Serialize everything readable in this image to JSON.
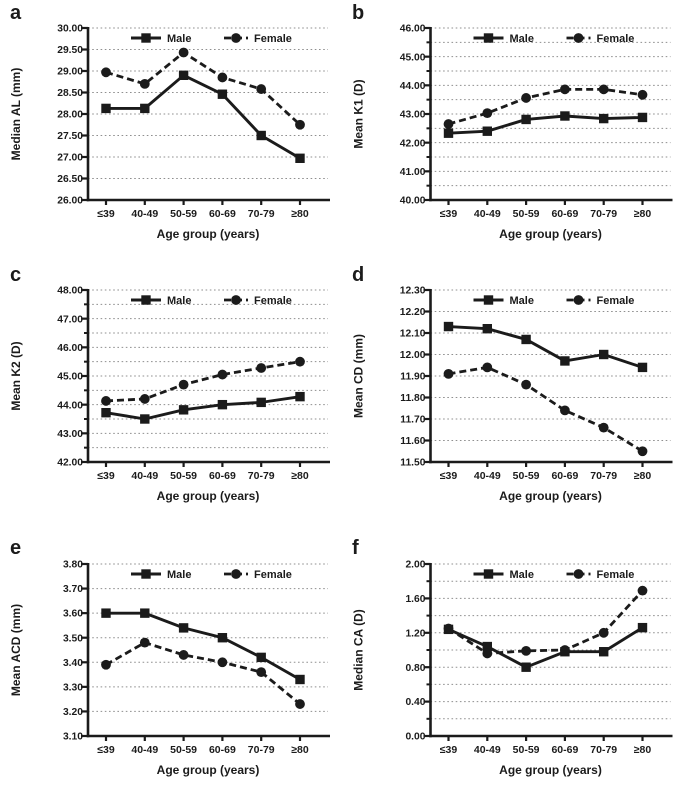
{
  "figure_title": "",
  "xlabel": "Age group (years)",
  "categories": [
    "≤39",
    "40-49",
    "50-59",
    "60-69",
    "70-79",
    "≥80"
  ],
  "legend": {
    "male_label": "Male",
    "female_label": "Female"
  },
  "colors": {
    "ink": "#1b1b1b",
    "grid": "#8f8f8f",
    "background": "#ffffff"
  },
  "chart_data": [
    {
      "panel_label": "a",
      "type": "line",
      "title": "",
      "ylabel": "Median AL (mm)",
      "ylim": [
        26.0,
        30.0
      ],
      "ytick_labels": [
        "30.00",
        "29.50",
        "29.00",
        "28.50",
        "28.00",
        "27.50",
        "27.00",
        "26.50",
        "26.00"
      ],
      "ygrid_step": 0.5,
      "grid": true,
      "legend_position": "top-inside",
      "series": [
        {
          "name": "Male",
          "marker": "square",
          "linestyle": "solid",
          "values": [
            28.13,
            28.13,
            28.9,
            28.46,
            27.5,
            26.97
          ]
        },
        {
          "name": "Female",
          "marker": "circle",
          "linestyle": "dashed",
          "values": [
            28.97,
            28.7,
            29.43,
            28.85,
            28.58,
            27.75
          ]
        }
      ]
    },
    {
      "panel_label": "b",
      "type": "line",
      "title": "",
      "ylabel": "Mean K1 (D)",
      "ylim": [
        40.0,
        46.0
      ],
      "ytick_labels": [
        "46.00",
        "45.00",
        "44.00",
        "43.00",
        "42.00",
        "41.00",
        "40.00"
      ],
      "ygrid_step": 0.5,
      "grid": true,
      "legend_position": "top-inside",
      "series": [
        {
          "name": "Male",
          "marker": "square",
          "linestyle": "solid",
          "values": [
            42.33,
            42.4,
            42.81,
            42.93,
            42.84,
            42.88
          ]
        },
        {
          "name": "Female",
          "marker": "circle",
          "linestyle": "dashed",
          "values": [
            42.65,
            43.03,
            43.56,
            43.86,
            43.86,
            43.67
          ]
        }
      ]
    },
    {
      "panel_label": "c",
      "type": "line",
      "title": "",
      "ylabel": "Mean K2 (D)",
      "ylim": [
        42.0,
        48.0
      ],
      "ytick_labels": [
        "48.00",
        "47.00",
        "46.00",
        "45.00",
        "44.00",
        "43.00",
        "42.00"
      ],
      "ygrid_step": 0.5,
      "grid": true,
      "legend_position": "top-inside",
      "series": [
        {
          "name": "Male",
          "marker": "square",
          "linestyle": "solid",
          "values": [
            43.72,
            43.5,
            43.82,
            44.0,
            44.08,
            44.28
          ]
        },
        {
          "name": "Female",
          "marker": "circle",
          "linestyle": "dashed",
          "values": [
            44.13,
            44.2,
            44.7,
            45.05,
            45.28,
            45.5
          ]
        }
      ]
    },
    {
      "panel_label": "d",
      "type": "line",
      "title": "",
      "ylabel": "Mean CD (mm)",
      "ylim": [
        11.5,
        12.3
      ],
      "ytick_labels": [
        "12.30",
        "12.20",
        "12.10",
        "12.00",
        "11.90",
        "11.80",
        "11.70",
        "11.60",
        "11.50"
      ],
      "ygrid_step": 0.1,
      "grid": true,
      "legend_position": "top-inside",
      "series": [
        {
          "name": "Male",
          "marker": "square",
          "linestyle": "solid",
          "values": [
            12.13,
            12.12,
            12.07,
            11.97,
            12.0,
            11.94
          ]
        },
        {
          "name": "Female",
          "marker": "circle",
          "linestyle": "dashed",
          "values": [
            11.91,
            11.94,
            11.86,
            11.74,
            11.66,
            11.55
          ]
        }
      ]
    },
    {
      "panel_label": "e",
      "type": "line",
      "title": "",
      "ylabel": "Mean ACD (mm)",
      "ylim": [
        3.1,
        3.8
      ],
      "ytick_labels": [
        "3.80",
        "3.70",
        "3.60",
        "3.50",
        "3.40",
        "3.30",
        "3.20",
        "3.10"
      ],
      "ygrid_step": 0.1,
      "grid": true,
      "legend_position": "top-inside",
      "series": [
        {
          "name": "Male",
          "marker": "square",
          "linestyle": "solid",
          "values": [
            3.6,
            3.6,
            3.54,
            3.5,
            3.42,
            3.33
          ]
        },
        {
          "name": "Female",
          "marker": "circle",
          "linestyle": "dashed",
          "values": [
            3.39,
            3.48,
            3.43,
            3.4,
            3.36,
            3.23
          ]
        }
      ]
    },
    {
      "panel_label": "f",
      "type": "line",
      "title": "",
      "ylabel": "Median CA (D)",
      "ylim": [
        0.0,
        2.0
      ],
      "ytick_labels": [
        "2.00",
        "1.60",
        "1.20",
        "0.80",
        "0.40",
        "0.00"
      ],
      "ygrid_step": 0.2,
      "grid": true,
      "legend_position": "top-inside",
      "series": [
        {
          "name": "Male",
          "marker": "square",
          "linestyle": "solid",
          "values": [
            1.24,
            1.04,
            0.8,
            0.98,
            0.98,
            1.26
          ]
        },
        {
          "name": "Female",
          "marker": "circle",
          "linestyle": "dashed",
          "values": [
            1.25,
            0.96,
            0.99,
            1.0,
            1.2,
            1.69
          ]
        }
      ]
    }
  ]
}
